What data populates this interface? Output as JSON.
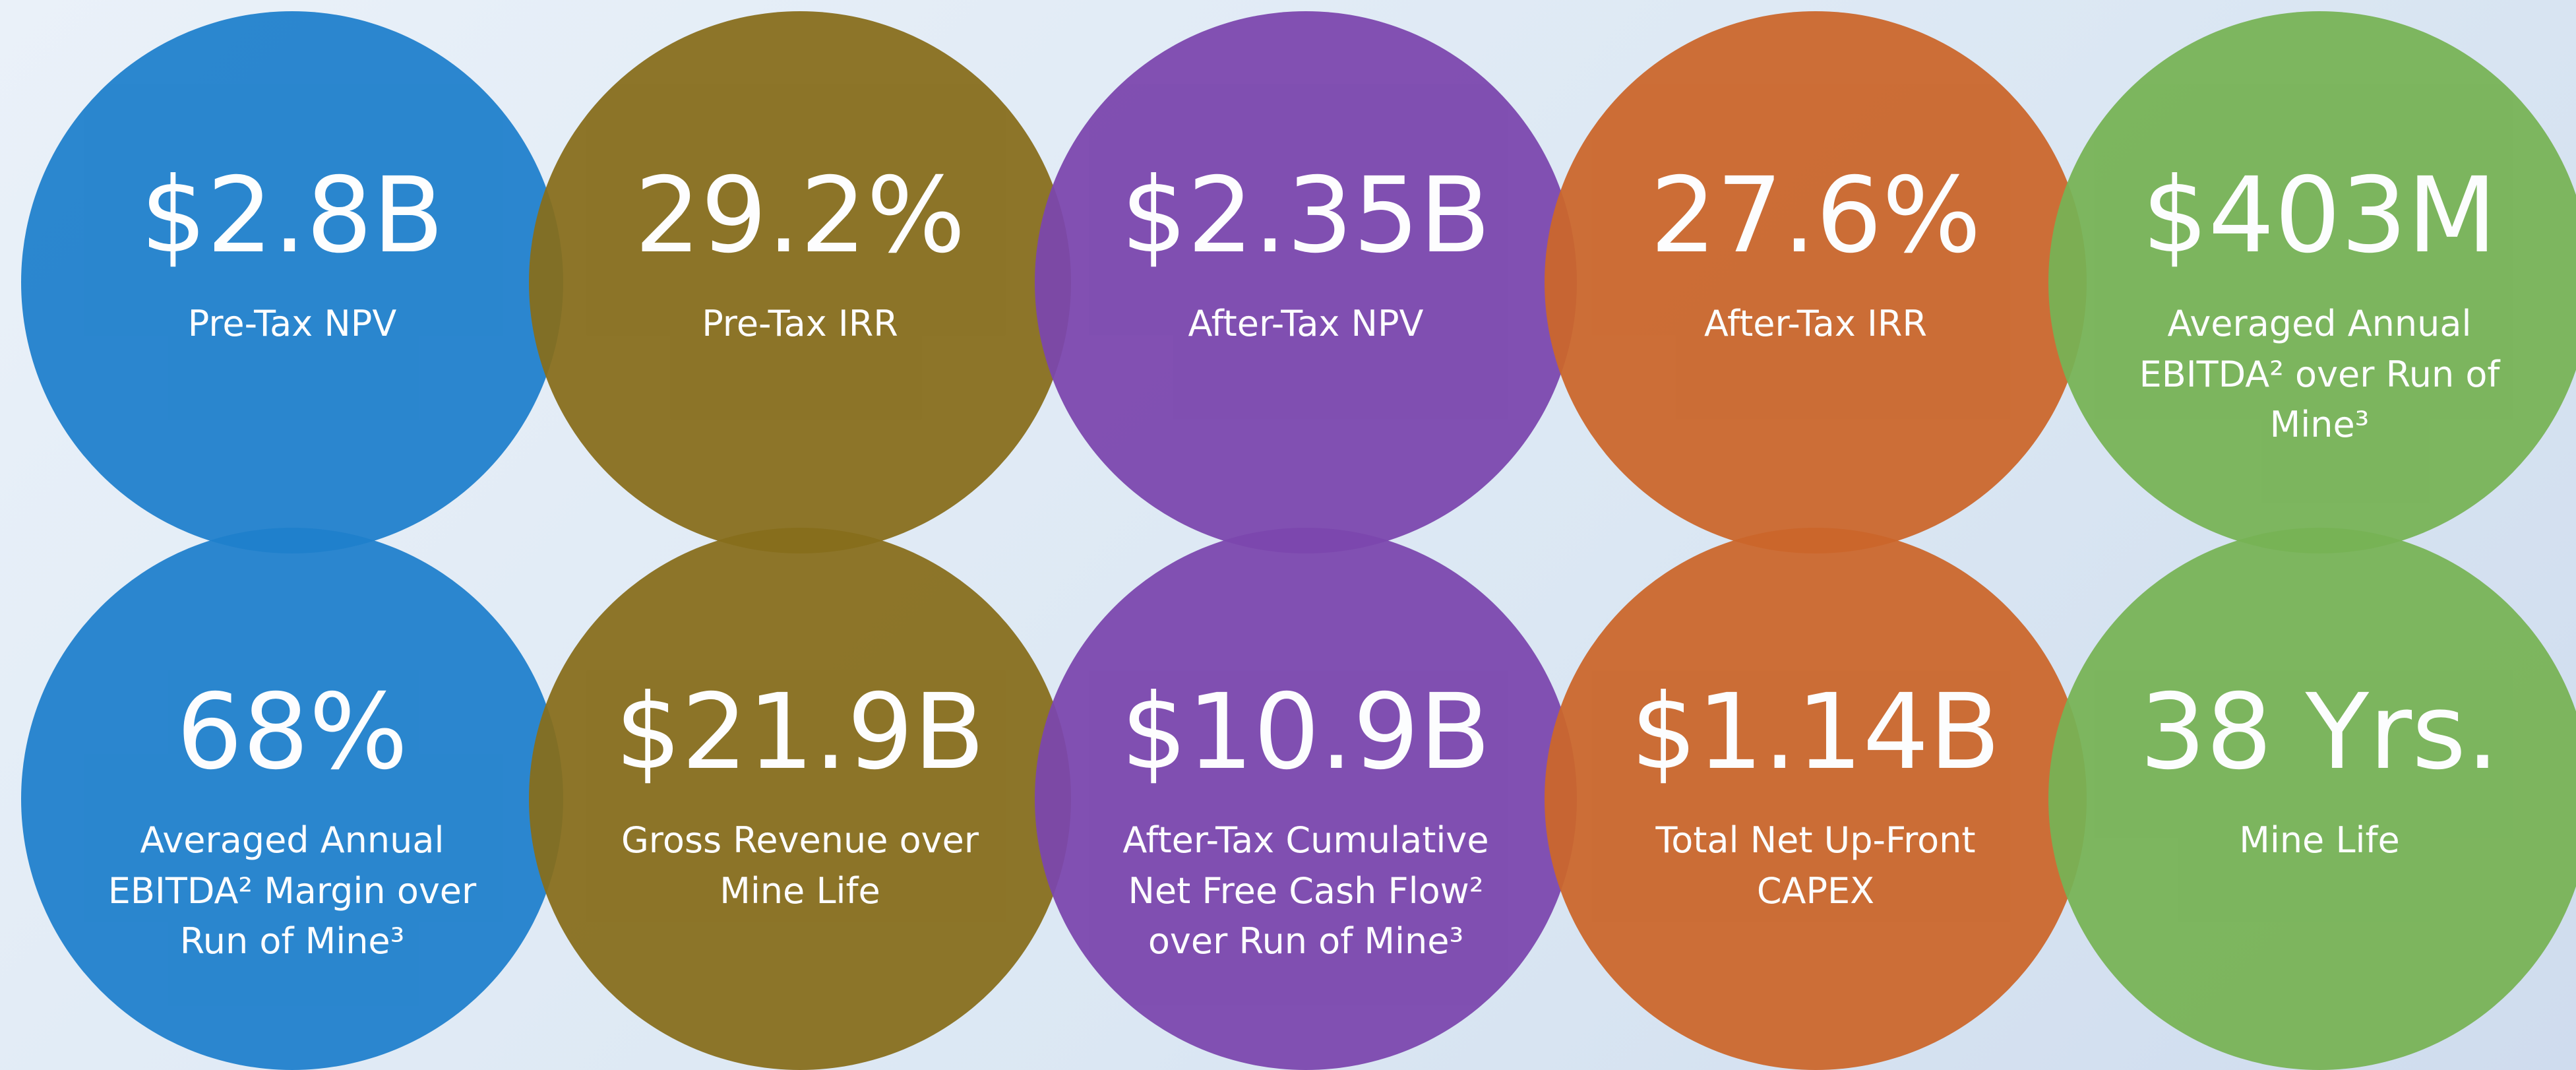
{
  "metrics": [
    {
      "value": "$2.8B",
      "label": "Pre-Tax NPV",
      "color": "#1f80cc"
    },
    {
      "value": "29.2%",
      "label": "Pre-Tax IRR",
      "color": "#876d1c"
    },
    {
      "value": "$2.35B",
      "label": "After-Tax NPV",
      "color": "#7b46ad"
    },
    {
      "value": "27.6%",
      "label": "After-Tax IRR",
      "color": "#cb662b"
    },
    {
      "value": "$403M",
      "label": "Averaged Annual EBITDA² over Run of Mine³",
      "color": "#77b355"
    },
    {
      "value": "68%",
      "label": "Averaged Annual EBITDA² Margin over Run of Mine³",
      "color": "#1f80cc"
    },
    {
      "value": "$21.9B",
      "label": "Gross Revenue over Mine Life",
      "color": "#876d1c"
    },
    {
      "value": "$10.9B",
      "label": "After-Tax Cumulative Net Free Cash Flow² over Run of Mine³",
      "color": "#7b46ad"
    },
    {
      "value": "$1.14B",
      "label": "Total Net Up-Front CAPEX",
      "color": "#cb662b"
    },
    {
      "value": "38 Yrs.",
      "label": "Mine Life",
      "color": "#77b355"
    }
  ]
}
